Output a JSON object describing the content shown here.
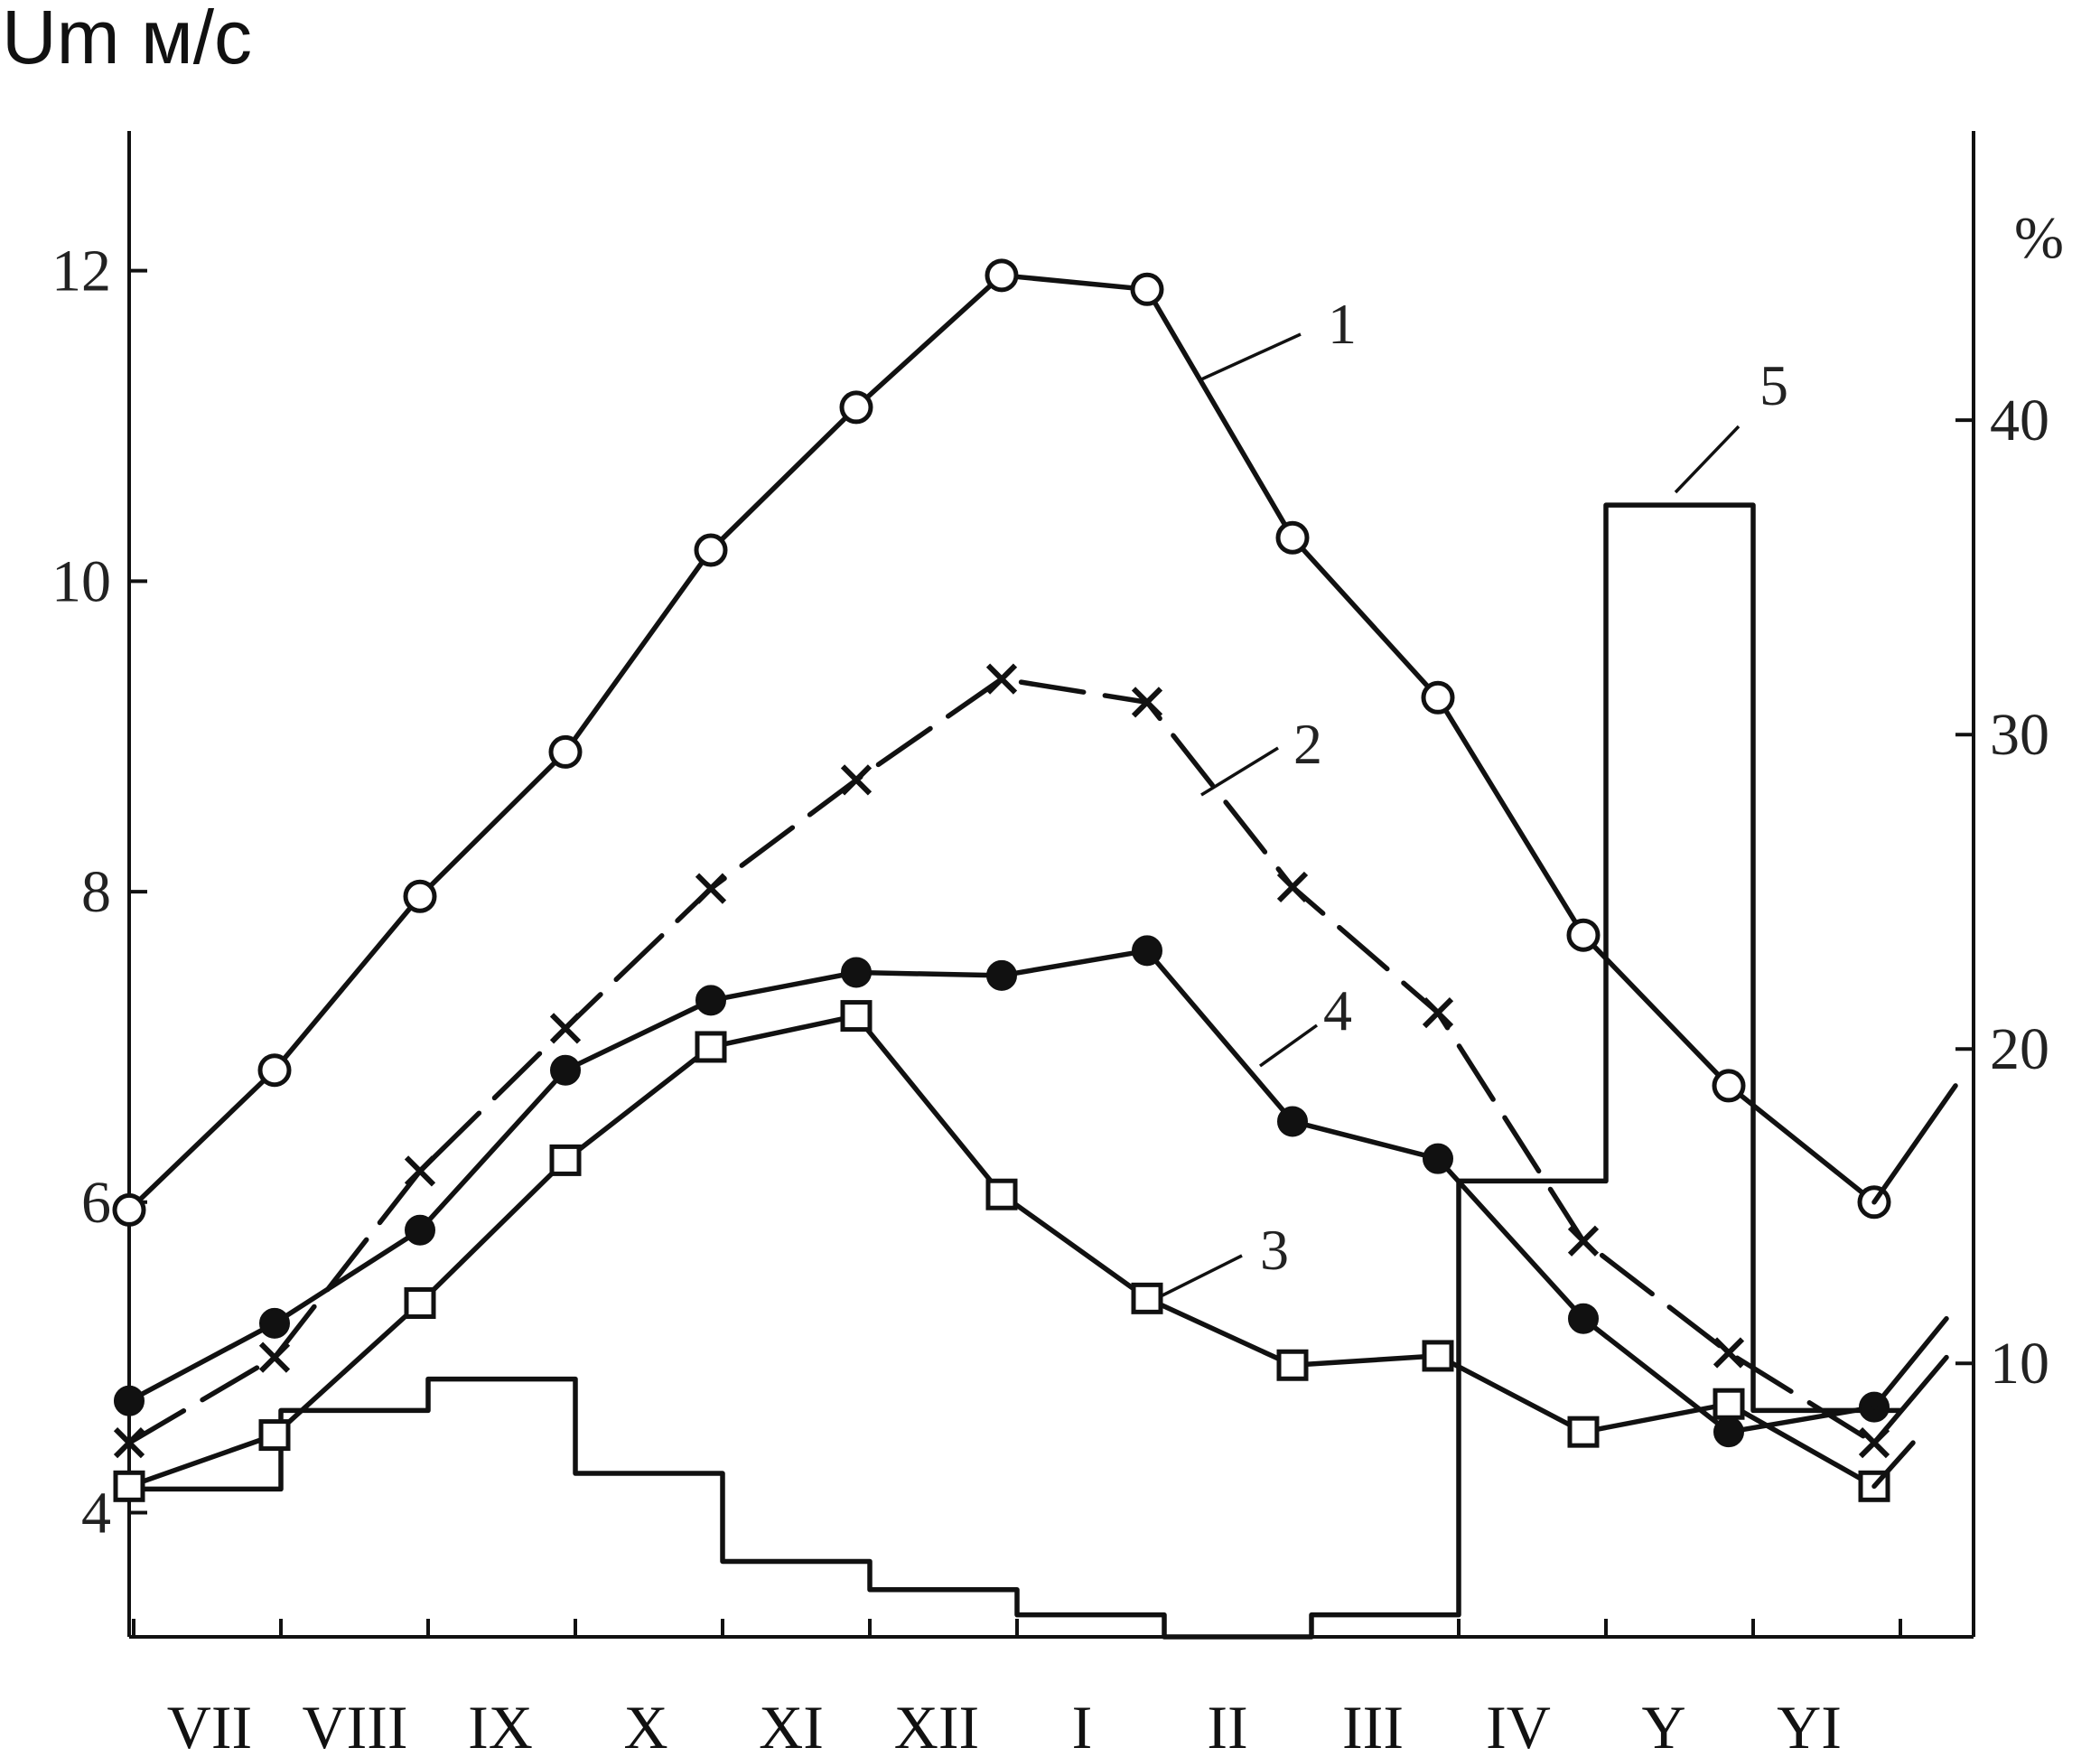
{
  "chart_data": {
    "type": "line",
    "ylabel_left": "Um м/с",
    "ylabel_right": "%",
    "left_axis": {
      "ylim": [
        3.2,
        12.9
      ],
      "ticks": [
        "4",
        "6",
        "8",
        "10",
        "12"
      ]
    },
    "right_axis": {
      "ylim": [
        1.3,
        49.2
      ],
      "ticks": [
        "10",
        "20",
        "30",
        "40"
      ]
    },
    "categories": [
      "VII",
      "VIII",
      "IX",
      "X",
      "XI",
      "XII",
      "I",
      "II",
      "III",
      "IV",
      "Y",
      "YI"
    ],
    "series": [
      {
        "name": "1",
        "marker": "open-circle",
        "dash": "solid",
        "x": [
          0,
          1,
          2,
          3,
          4,
          5,
          6,
          7,
          8,
          9,
          10,
          11,
          12
        ],
        "values": [
          5.95,
          6.85,
          7.97,
          8.9,
          10.2,
          11.12,
          11.97,
          11.88,
          10.28,
          9.25,
          7.72,
          6.75,
          6.0
        ]
      },
      {
        "name": "2",
        "marker": "cross",
        "dash": "dashed",
        "x": [
          0,
          1,
          2,
          3,
          4,
          5,
          6,
          7,
          8,
          9,
          10,
          11,
          12
        ],
        "values": [
          4.45,
          5.0,
          6.2,
          7.12,
          8.02,
          8.72,
          9.37,
          9.22,
          8.03,
          7.22,
          5.75,
          5.03,
          4.45
        ]
      },
      {
        "name": "3",
        "marker": "open-square",
        "dash": "solid",
        "x": [
          0,
          1,
          2,
          3,
          4,
          5,
          6,
          7,
          8,
          9,
          10,
          11,
          12
        ],
        "values": [
          4.17,
          4.5,
          5.35,
          6.27,
          7.0,
          7.2,
          6.05,
          5.38,
          4.95,
          5.01,
          4.52,
          4.7,
          4.17
        ]
      },
      {
        "name": "4",
        "marker": "filled-circle",
        "dash": "solid",
        "x": [
          0,
          1,
          2,
          3,
          4,
          5,
          6,
          7,
          8,
          9,
          10,
          11,
          12
        ],
        "values": [
          4.72,
          5.22,
          5.82,
          6.85,
          7.3,
          7.48,
          7.46,
          7.62,
          6.52,
          6.28,
          5.25,
          4.52,
          4.68
        ]
      },
      {
        "name": "5",
        "type": "step",
        "axis": "right",
        "x_edges": [
          0,
          1,
          2,
          3,
          4,
          5,
          6,
          7,
          8,
          9,
          10,
          11,
          12
        ],
        "values": [
          6,
          8.5,
          9.5,
          6.5,
          3.7,
          2.8,
          2.0,
          1.3,
          2.0,
          15.8,
          37.3,
          8.5
        ]
      }
    ]
  }
}
